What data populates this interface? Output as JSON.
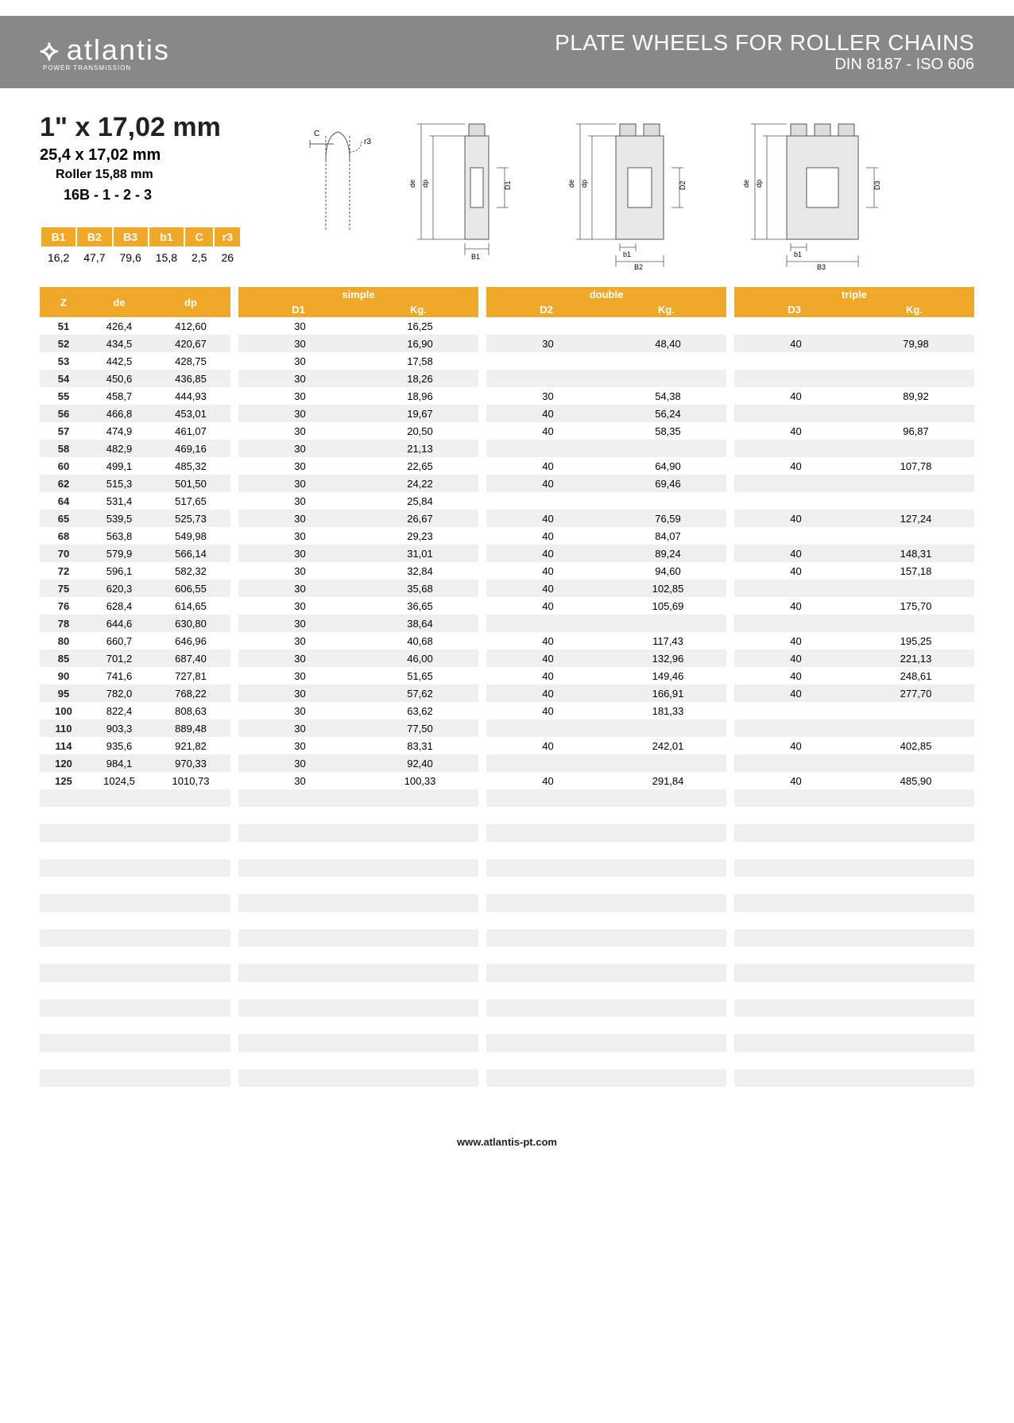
{
  "header": {
    "logo_text": "atlantis",
    "logo_sub": "POWER TRANSMISSION",
    "title_main": "PLATE WHEELS FOR ROLLER CHAINS",
    "title_sub": "DIN 8187 - ISO 606"
  },
  "spec": {
    "title": "1\" x 17,02 mm",
    "line2": "25,4 x 17,02 mm",
    "line3": "Roller 15,88 mm",
    "line4": "16B - 1 - 2 - 3"
  },
  "small_table": {
    "headers": [
      "B1",
      "B2",
      "B3",
      "b1",
      "C",
      "r3"
    ],
    "values": [
      "16,2",
      "47,7",
      "79,6",
      "15,8",
      "2,5",
      "26"
    ]
  },
  "groups": {
    "simple": {
      "label": "simple",
      "d": "D1",
      "kg": "Kg."
    },
    "double": {
      "label": "double",
      "d": "D2",
      "kg": "Kg."
    },
    "triple": {
      "label": "triple",
      "d": "D3",
      "kg": "Kg."
    }
  },
  "zdedp_headers": {
    "z": "Z",
    "de": "de",
    "dp": "dp"
  },
  "colors": {
    "header_bg": "#888888",
    "accent": "#f0a828",
    "row_odd": "#efefef",
    "row_even": "#ffffff"
  },
  "rows": [
    {
      "z": "51",
      "de": "426,4",
      "dp": "412,60",
      "d1": "30",
      "kg1": "16,25",
      "d2": "",
      "kg2": "",
      "d3": "",
      "kg3": ""
    },
    {
      "z": "52",
      "de": "434,5",
      "dp": "420,67",
      "d1": "30",
      "kg1": "16,90",
      "d2": "30",
      "kg2": "48,40",
      "d3": "40",
      "kg3": "79,98"
    },
    {
      "z": "53",
      "de": "442,5",
      "dp": "428,75",
      "d1": "30",
      "kg1": "17,58",
      "d2": "",
      "kg2": "",
      "d3": "",
      "kg3": ""
    },
    {
      "z": "54",
      "de": "450,6",
      "dp": "436,85",
      "d1": "30",
      "kg1": "18,26",
      "d2": "",
      "kg2": "",
      "d3": "",
      "kg3": ""
    },
    {
      "z": "55",
      "de": "458,7",
      "dp": "444,93",
      "d1": "30",
      "kg1": "18,96",
      "d2": "30",
      "kg2": "54,38",
      "d3": "40",
      "kg3": "89,92"
    },
    {
      "z": "56",
      "de": "466,8",
      "dp": "453,01",
      "d1": "30",
      "kg1": "19,67",
      "d2": "40",
      "kg2": "56,24",
      "d3": "",
      "kg3": ""
    },
    {
      "z": "57",
      "de": "474,9",
      "dp": "461,07",
      "d1": "30",
      "kg1": "20,50",
      "d2": "40",
      "kg2": "58,35",
      "d3": "40",
      "kg3": "96,87"
    },
    {
      "z": "58",
      "de": "482,9",
      "dp": "469,16",
      "d1": "30",
      "kg1": "21,13",
      "d2": "",
      "kg2": "",
      "d3": "",
      "kg3": ""
    },
    {
      "z": "60",
      "de": "499,1",
      "dp": "485,32",
      "d1": "30",
      "kg1": "22,65",
      "d2": "40",
      "kg2": "64,90",
      "d3": "40",
      "kg3": "107,78"
    },
    {
      "z": "62",
      "de": "515,3",
      "dp": "501,50",
      "d1": "30",
      "kg1": "24,22",
      "d2": "40",
      "kg2": "69,46",
      "d3": "",
      "kg3": ""
    },
    {
      "z": "64",
      "de": "531,4",
      "dp": "517,65",
      "d1": "30",
      "kg1": "25,84",
      "d2": "",
      "kg2": "",
      "d3": "",
      "kg3": ""
    },
    {
      "z": "65",
      "de": "539,5",
      "dp": "525,73",
      "d1": "30",
      "kg1": "26,67",
      "d2": "40",
      "kg2": "76,59",
      "d3": "40",
      "kg3": "127,24"
    },
    {
      "z": "68",
      "de": "563,8",
      "dp": "549,98",
      "d1": "30",
      "kg1": "29,23",
      "d2": "40",
      "kg2": "84,07",
      "d3": "",
      "kg3": ""
    },
    {
      "z": "70",
      "de": "579,9",
      "dp": "566,14",
      "d1": "30",
      "kg1": "31,01",
      "d2": "40",
      "kg2": "89,24",
      "d3": "40",
      "kg3": "148,31"
    },
    {
      "z": "72",
      "de": "596,1",
      "dp": "582,32",
      "d1": "30",
      "kg1": "32,84",
      "d2": "40",
      "kg2": "94,60",
      "d3": "40",
      "kg3": "157,18"
    },
    {
      "z": "75",
      "de": "620,3",
      "dp": "606,55",
      "d1": "30",
      "kg1": "35,68",
      "d2": "40",
      "kg2": "102,85",
      "d3": "",
      "kg3": ""
    },
    {
      "z": "76",
      "de": "628,4",
      "dp": "614,65",
      "d1": "30",
      "kg1": "36,65",
      "d2": "40",
      "kg2": "105,69",
      "d3": "40",
      "kg3": "175,70"
    },
    {
      "z": "78",
      "de": "644,6",
      "dp": "630,80",
      "d1": "30",
      "kg1": "38,64",
      "d2": "",
      "kg2": "",
      "d3": "",
      "kg3": ""
    },
    {
      "z": "80",
      "de": "660,7",
      "dp": "646,96",
      "d1": "30",
      "kg1": "40,68",
      "d2": "40",
      "kg2": "117,43",
      "d3": "40",
      "kg3": "195,25"
    },
    {
      "z": "85",
      "de": "701,2",
      "dp": "687,40",
      "d1": "30",
      "kg1": "46,00",
      "d2": "40",
      "kg2": "132,96",
      "d3": "40",
      "kg3": "221,13"
    },
    {
      "z": "90",
      "de": "741,6",
      "dp": "727,81",
      "d1": "30",
      "kg1": "51,65",
      "d2": "40",
      "kg2": "149,46",
      "d3": "40",
      "kg3": "248,61"
    },
    {
      "z": "95",
      "de": "782,0",
      "dp": "768,22",
      "d1": "30",
      "kg1": "57,62",
      "d2": "40",
      "kg2": "166,91",
      "d3": "40",
      "kg3": "277,70"
    },
    {
      "z": "100",
      "de": "822,4",
      "dp": "808,63",
      "d1": "30",
      "kg1": "63,62",
      "d2": "40",
      "kg2": "181,33",
      "d3": "",
      "kg3": ""
    },
    {
      "z": "110",
      "de": "903,3",
      "dp": "889,48",
      "d1": "30",
      "kg1": "77,50",
      "d2": "",
      "kg2": "",
      "d3": "",
      "kg3": ""
    },
    {
      "z": "114",
      "de": "935,6",
      "dp": "921,82",
      "d1": "30",
      "kg1": "83,31",
      "d2": "40",
      "kg2": "242,01",
      "d3": "40",
      "kg3": "402,85"
    },
    {
      "z": "120",
      "de": "984,1",
      "dp": "970,33",
      "d1": "30",
      "kg1": "92,40",
      "d2": "",
      "kg2": "",
      "d3": "",
      "kg3": ""
    },
    {
      "z": "125",
      "de": "1024,5",
      "dp": "1010,73",
      "d1": "30",
      "kg1": "100,33",
      "d2": "40",
      "kg2": "291,84",
      "d3": "40",
      "kg3": "485,90"
    }
  ],
  "empty_rows": 18,
  "footer": "www.atlantis-pt.com",
  "diagram_labels": {
    "c": "C",
    "r3": "r3",
    "de": "de",
    "dp": "dp",
    "d1": "D1",
    "d2": "D2",
    "d3": "D3",
    "b1": "b1",
    "B1": "B1",
    "B2": "B2",
    "B3": "B3"
  }
}
